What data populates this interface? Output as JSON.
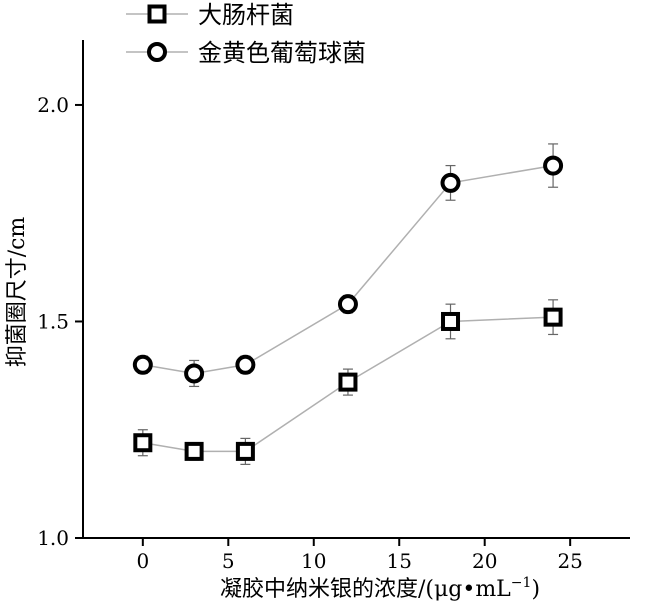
{
  "chart_data": {
    "type": "line",
    "x": [
      0,
      3,
      6,
      12,
      18,
      24
    ],
    "series": [
      {
        "name": "大肠杆菌",
        "marker": "square",
        "values": [
          1.22,
          1.2,
          1.2,
          1.36,
          1.5,
          1.51
        ],
        "errors": [
          0.03,
          0.02,
          0.03,
          0.03,
          0.04,
          0.04
        ]
      },
      {
        "name": "金黄色葡萄球菌",
        "marker": "circle",
        "values": [
          1.4,
          1.38,
          1.4,
          1.54,
          1.82,
          1.86
        ],
        "errors": [
          0.02,
          0.03,
          0.02,
          0.02,
          0.04,
          0.05
        ]
      }
    ],
    "xlabel": "凝胶中纳米银的浓度/(μg•mL",
    "xlabel_sup": "−1",
    "xlabel_close": ")",
    "ylabel": "抑菌圈尺寸/cm",
    "xlim": [
      -3.5,
      28.5
    ],
    "ylim": [
      1.0,
      2.15
    ],
    "xticks": [
      0,
      5,
      10,
      15,
      20,
      25
    ],
    "xtick_labels": [
      "0",
      "5",
      "10",
      "15",
      "20",
      "25"
    ],
    "yticks": [
      1.0,
      1.5,
      2.0
    ],
    "ytick_labels": [
      "1.0",
      "1.5",
      "2.0"
    ],
    "grid": false,
    "legend_position": "top-left",
    "line_color": "#b0b0b0",
    "marker_color": "#000000"
  }
}
